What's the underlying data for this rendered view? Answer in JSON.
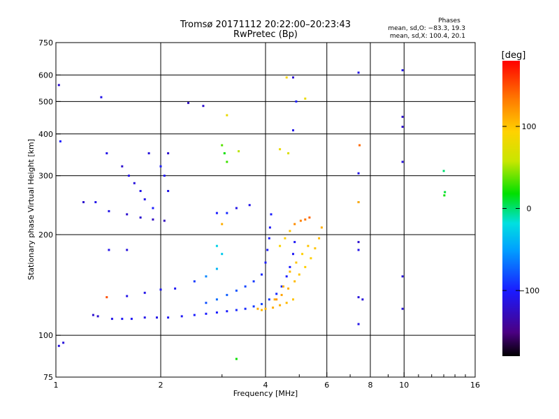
{
  "chart_data": {
    "type": "scatter",
    "title": "Tromsø 20171112 20:22:00–20:23:43",
    "subtitle": "RwPretec (Bp)",
    "xlabel": "Frequency [MHz]",
    "ylabel": "Stationary phase Virtual Height [km]",
    "x_scale": "log",
    "y_scale": "log",
    "xlim": [
      1,
      16
    ],
    "ylim": [
      75,
      750
    ],
    "x_ticks": [
      1,
      2,
      4,
      6,
      8,
      10,
      16
    ],
    "y_ticks": [
      75,
      100,
      200,
      300,
      400,
      500,
      600,
      750
    ],
    "x_gridlines": [
      2,
      4,
      6,
      8,
      10
    ],
    "y_gridlines": [
      100,
      200,
      300,
      400,
      500,
      600
    ],
    "grid": true,
    "stats": {
      "heading": "Phases",
      "line1": "mean, sd,O: −83.3, 19.3",
      "line2": "mean, sd,X: 100.4, 20.1"
    },
    "colorbar": {
      "label": "[deg]",
      "range": [
        -180,
        180
      ],
      "ticks": [
        100,
        0,
        -100
      ],
      "tick_labels": [
        "100",
        "0",
        "−100"
      ],
      "colormap": "rainbow"
    },
    "series": [
      {
        "name": "O",
        "points": [
          [
            1.28,
            115,
            -120
          ],
          [
            1.32,
            114,
            -120
          ],
          [
            1.45,
            112,
            -110
          ],
          [
            1.55,
            112,
            -105
          ],
          [
            1.65,
            112,
            -105
          ],
          [
            1.8,
            113,
            -110
          ],
          [
            1.95,
            113,
            -110
          ],
          [
            2.1,
            113,
            -105
          ],
          [
            2.3,
            114,
            -105
          ],
          [
            2.5,
            115,
            -100
          ],
          [
            2.7,
            116,
            -100
          ],
          [
            2.9,
            117,
            -100
          ],
          [
            3.1,
            118,
            -100
          ],
          [
            3.3,
            119,
            -95
          ],
          [
            3.5,
            120,
            -95
          ],
          [
            3.7,
            122,
            -90
          ],
          [
            3.9,
            124,
            -85
          ],
          [
            4.1,
            128,
            -90
          ],
          [
            4.3,
            133,
            -95
          ],
          [
            4.45,
            140,
            -95
          ],
          [
            4.6,
            150,
            -100
          ],
          [
            4.7,
            160,
            -100
          ],
          [
            4.8,
            175,
            -105
          ],
          [
            4.85,
            190,
            -105
          ],
          [
            1.6,
            131,
            -110
          ],
          [
            1.8,
            134,
            -110
          ],
          [
            2.0,
            137,
            -105
          ],
          [
            2.2,
            138,
            -105
          ],
          [
            2.7,
            125,
            -80
          ],
          [
            2.9,
            128,
            -70
          ],
          [
            3.1,
            132,
            -75
          ],
          [
            3.3,
            136,
            -80
          ],
          [
            3.5,
            140,
            -85
          ],
          [
            3.7,
            145,
            -90
          ],
          [
            3.9,
            152,
            -95
          ],
          [
            4.0,
            165,
            -100
          ],
          [
            4.05,
            180,
            -100
          ],
          [
            4.1,
            195,
            -100
          ],
          [
            4.12,
            210,
            -105
          ],
          [
            4.15,
            230,
            -100
          ],
          [
            2.5,
            145,
            -90
          ],
          [
            2.7,
            150,
            -60
          ],
          [
            2.9,
            158,
            -40
          ],
          [
            3.0,
            175,
            -30
          ],
          [
            2.9,
            185,
            -25
          ],
          [
            1.6,
            230,
            -120
          ],
          [
            1.75,
            225,
            -120
          ],
          [
            1.9,
            222,
            -125
          ],
          [
            2.05,
            220,
            -125
          ],
          [
            2.9,
            232,
            -100
          ],
          [
            3.1,
            232,
            -95
          ],
          [
            3.3,
            240,
            -110
          ],
          [
            3.6,
            245,
            -110
          ],
          [
            1.55,
            320,
            -120
          ],
          [
            1.62,
            300,
            -110
          ],
          [
            1.68,
            285,
            -115
          ],
          [
            1.75,
            270,
            -110
          ],
          [
            1.8,
            255,
            -110
          ],
          [
            1.9,
            240,
            -100
          ],
          [
            2.0,
            320,
            -100
          ],
          [
            2.05,
            300,
            -105
          ],
          [
            2.1,
            350,
            -120
          ],
          [
            2.1,
            270,
            -110
          ],
          [
            2.4,
            495,
            -125
          ],
          [
            2.65,
            485,
            -120
          ],
          [
            1.35,
            515,
            -110
          ],
          [
            1.02,
            560,
            -120
          ],
          [
            1.05,
            95,
            -115
          ],
          [
            1.02,
            93,
            -115
          ],
          [
            1.2,
            250,
            -120
          ],
          [
            1.3,
            250,
            -110
          ],
          [
            1.42,
            235,
            -110
          ],
          [
            1.42,
            180,
            -110
          ],
          [
            1.6,
            180,
            -115
          ],
          [
            1.03,
            380,
            -100
          ],
          [
            1.4,
            350,
            -110
          ],
          [
            1.85,
            350,
            -115
          ],
          [
            7.4,
            610,
            -110
          ],
          [
            9.9,
            620,
            -110
          ],
          [
            9.9,
            450,
            -120
          ],
          [
            9.9,
            420,
            -120
          ],
          [
            9.9,
            330,
            -115
          ],
          [
            7.4,
            305,
            -110
          ],
          [
            7.4,
            250,
            -110
          ],
          [
            7.4,
            190,
            -120
          ],
          [
            7.4,
            180,
            -110
          ],
          [
            9.9,
            150,
            -115
          ],
          [
            7.4,
            130,
            -115
          ],
          [
            7.6,
            128,
            -115
          ],
          [
            9.9,
            120,
            -115
          ],
          [
            7.4,
            108,
            -110
          ],
          [
            4.8,
            590,
            -120
          ],
          [
            4.9,
            500,
            -100
          ],
          [
            4.8,
            410,
            -110
          ]
        ]
      },
      {
        "name": "X",
        "points": [
          [
            4.25,
            128,
            110
          ],
          [
            4.45,
            132,
            115
          ],
          [
            4.65,
            138,
            110
          ],
          [
            4.85,
            145,
            105
          ],
          [
            5.0,
            152,
            100
          ],
          [
            5.2,
            160,
            95
          ],
          [
            5.4,
            170,
            95
          ],
          [
            5.55,
            182,
            100
          ],
          [
            5.7,
            195,
            105
          ],
          [
            5.8,
            210,
            110
          ],
          [
            4.4,
            185,
            90
          ],
          [
            4.55,
            195,
            95
          ],
          [
            4.7,
            205,
            100
          ],
          [
            4.85,
            215,
            125
          ],
          [
            5.05,
            220,
            130
          ],
          [
            5.2,
            222,
            135
          ],
          [
            5.35,
            225,
            140
          ],
          [
            4.3,
            128,
            120
          ],
          [
            4.5,
            140,
            110
          ],
          [
            4.7,
            155,
            105
          ],
          [
            4.9,
            165,
            100
          ],
          [
            5.1,
            175,
            95
          ],
          [
            5.3,
            185,
            100
          ],
          [
            3.8,
            120,
            110
          ],
          [
            3.9,
            119,
            105
          ],
          [
            4.0,
            120,
            105
          ],
          [
            4.2,
            121,
            110
          ],
          [
            4.4,
            123,
            110
          ],
          [
            4.6,
            125,
            105
          ],
          [
            4.8,
            128,
            100
          ],
          [
            5.2,
            510,
            80
          ],
          [
            4.6,
            590,
            90
          ],
          [
            4.65,
            350,
            70
          ],
          [
            3.1,
            455,
            80
          ],
          [
            3.0,
            370,
            35
          ],
          [
            3.05,
            350,
            20
          ],
          [
            3.1,
            330,
            30
          ],
          [
            3.35,
            355,
            55
          ],
          [
            4.4,
            360,
            80
          ],
          [
            3.3,
            85,
            20
          ],
          [
            7.45,
            370,
            140
          ],
          [
            7.4,
            250,
            110
          ],
          [
            13.0,
            310,
            0
          ],
          [
            13.1,
            268,
            10
          ],
          [
            13.05,
            262,
            20
          ],
          [
            1.4,
            130,
            150
          ],
          [
            3.0,
            215,
            110
          ]
        ]
      }
    ]
  }
}
